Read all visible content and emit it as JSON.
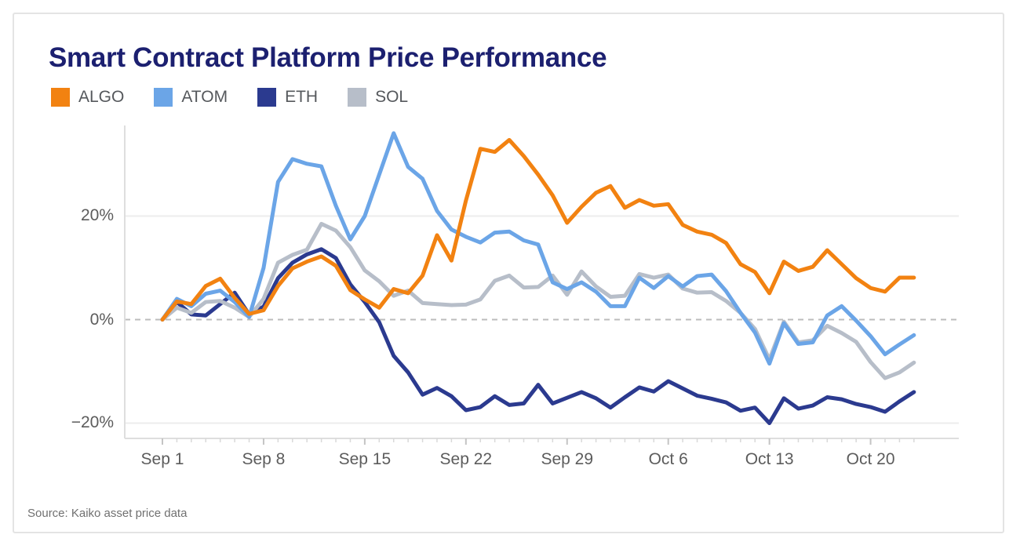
{
  "title": "Smart Contract Platform Price Performance",
  "source": "Source: Kaiko asset price data",
  "colors": {
    "title_text": "#1c2070",
    "axis_text": "#5c5c5c",
    "legend_text": "#55585c",
    "gridline": "#ececec",
    "axis_line": "#dedede",
    "zero_line": "#bcbcbc",
    "minor_tick": "#d9d9d9",
    "major_tick": "#c4c4c4"
  },
  "chart_data": {
    "type": "line",
    "title": "Smart Contract Platform Price Performance",
    "xlabel": "",
    "ylabel": "",
    "x_unit": "days since Sep 1",
    "x_tick_labels": [
      "Sep 1",
      "Sep 8",
      "Sep 15",
      "Sep 22",
      "Sep 29",
      "Oct 6",
      "Oct 13",
      "Oct 20"
    ],
    "x_tick_days": [
      0,
      7,
      14,
      21,
      28,
      35,
      42,
      49
    ],
    "y_tick_labels": [
      "20%",
      "0%",
      "−20%"
    ],
    "y_ticks": [
      20,
      0,
      -20
    ],
    "ylim": [
      -23.5,
      37.5
    ],
    "grid": "horizontal",
    "zero_line": "dashed",
    "legend_position": "top-left",
    "series": [
      {
        "name": "ALGO",
        "color": "#f28211",
        "values": [
          0,
          3.5,
          3.0,
          6.5,
          7.9,
          4.2,
          1.1,
          1.8,
          6.5,
          9.9,
          11.2,
          12.2,
          10.4,
          5.7,
          3.9,
          2.3,
          5.9,
          5.1,
          8.5,
          16.3,
          11.4,
          23.0,
          33.0,
          32.4,
          34.7,
          31.6,
          28.0,
          24.0,
          18.7,
          21.8,
          24.5,
          25.8,
          21.6,
          23.1,
          22.0,
          22.3,
          18.3,
          17.0,
          16.4,
          14.8,
          10.7,
          9.2,
          5.1,
          11.2,
          9.4,
          10.2,
          13.4,
          10.7,
          8.0,
          6.1,
          5.4,
          8.1,
          8.1
        ]
      },
      {
        "name": "ATOM",
        "color": "#6ba5e7",
        "values": [
          0,
          4.0,
          2.6,
          5.0,
          5.6,
          3.4,
          0.5,
          10.0,
          26.6,
          31.0,
          30.1,
          29.6,
          22.0,
          15.5,
          20.0,
          28.0,
          36.0,
          29.5,
          27.2,
          21.0,
          17.4,
          16.0,
          14.9,
          16.8,
          17.0,
          15.3,
          14.5,
          7.2,
          5.9,
          7.2,
          5.4,
          2.6,
          2.6,
          8.1,
          6.1,
          8.4,
          6.4,
          8.4,
          8.7,
          5.5,
          1.3,
          -2.5,
          -8.5,
          -0.7,
          -4.7,
          -4.4,
          0.8,
          2.6,
          -0.2,
          -3.2,
          -6.7,
          -4.8,
          -3.0
        ]
      },
      {
        "name": "ETH",
        "color": "#2b3a8f",
        "values": [
          0,
          3.4,
          1.0,
          0.8,
          3.0,
          5.2,
          1.0,
          2.5,
          8.0,
          11.0,
          12.6,
          13.6,
          11.9,
          6.8,
          3.4,
          -0.5,
          -7.0,
          -10.2,
          -14.5,
          -13.2,
          -14.8,
          -17.5,
          -16.9,
          -14.8,
          -16.5,
          -16.2,
          -12.6,
          -16.2,
          -15.1,
          -14.0,
          -15.2,
          -17.0,
          -15.0,
          -13.1,
          -13.9,
          -11.9,
          -13.3,
          -14.7,
          -15.3,
          -16.0,
          -17.6,
          -17.0,
          -20.0,
          -15.2,
          -17.2,
          -16.6,
          -15.0,
          -15.4,
          -16.3,
          -16.9,
          -17.8,
          -15.8,
          -14.0
        ]
      },
      {
        "name": "SOL",
        "color": "#b7bec9",
        "values": [
          0,
          2.3,
          1.3,
          3.4,
          3.6,
          2.3,
          0.5,
          4.0,
          11.0,
          12.5,
          13.5,
          18.5,
          17.2,
          14.0,
          9.5,
          7.4,
          4.6,
          5.6,
          3.2,
          3.0,
          2.8,
          2.9,
          3.9,
          7.5,
          8.5,
          6.2,
          6.3,
          8.5,
          4.8,
          9.3,
          6.4,
          4.4,
          4.6,
          8.8,
          8.1,
          8.7,
          6.0,
          5.2,
          5.3,
          3.6,
          1.3,
          -1.8,
          -7.7,
          -0.4,
          -4.4,
          -4.0,
          -1.2,
          -2.6,
          -4.3,
          -8.2,
          -11.3,
          -10.2,
          -8.3
        ]
      }
    ]
  }
}
